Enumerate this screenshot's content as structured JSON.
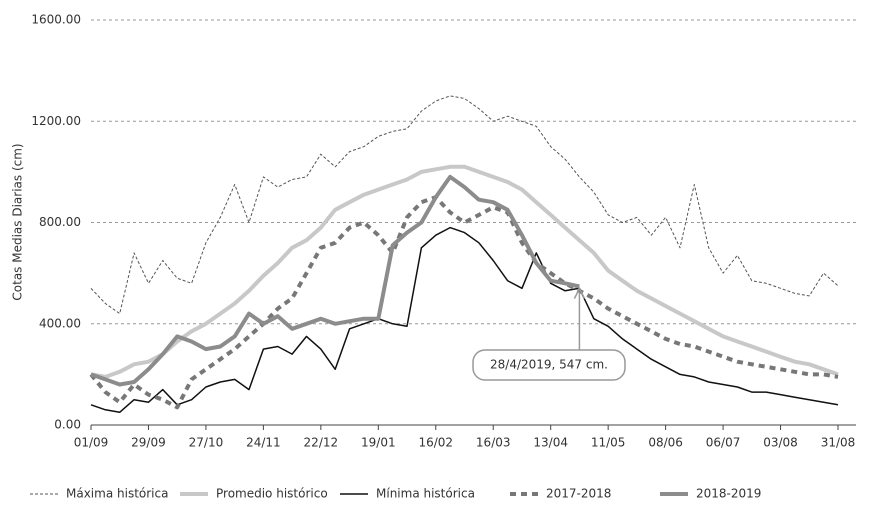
{
  "chart_data": {
    "type": "line",
    "ylabel": "Cotas Medias Diarias (cm)",
    "categories": [
      "01/09",
      null,
      null,
      null,
      "29/09",
      null,
      null,
      null,
      "27/10",
      null,
      null,
      null,
      "24/11",
      null,
      null,
      null,
      "22/12",
      null,
      null,
      null,
      "19/01",
      null,
      null,
      null,
      "16/02",
      null,
      null,
      null,
      "16/03",
      null,
      null,
      null,
      "13/04",
      null,
      null,
      null,
      "11/05",
      null,
      null,
      null,
      "08/06",
      null,
      null,
      null,
      "06/07",
      null,
      null,
      null,
      "03/08",
      null,
      null,
      null,
      "31/08"
    ],
    "ylim": [
      0,
      1600
    ],
    "yticks": [
      {
        "value": 0,
        "label": "0.00"
      },
      {
        "value": 400,
        "label": "400.00"
      },
      {
        "value": 800,
        "label": "800.00"
      },
      {
        "value": 1200,
        "label": "1200.00"
      },
      {
        "value": 1600,
        "label": "1600.00"
      }
    ],
    "grid": true,
    "legend": "bottom",
    "series": [
      {
        "name": "Máxima histórica",
        "color": "#555555",
        "dash": "3,2",
        "width": 1,
        "values": [
          540,
          480,
          440,
          680,
          560,
          650,
          580,
          560,
          720,
          820,
          950,
          800,
          980,
          940,
          970,
          980,
          1070,
          1020,
          1080,
          1100,
          1140,
          1160,
          1170,
          1240,
          1280,
          1300,
          1290,
          1250,
          1200,
          1220,
          1200,
          1180,
          1100,
          1050,
          980,
          920,
          830,
          800,
          820,
          750,
          820,
          700,
          950,
          700,
          600,
          670,
          570,
          560,
          540,
          520,
          510,
          600,
          550
        ]
      },
      {
        "name": "Promedio histórico",
        "color": "#c8c8c8",
        "dash": "none",
        "width": 4,
        "values": [
          200,
          190,
          210,
          240,
          250,
          280,
          330,
          370,
          400,
          440,
          480,
          530,
          590,
          640,
          700,
          730,
          780,
          850,
          880,
          910,
          930,
          950,
          970,
          1000,
          1010,
          1020,
          1020,
          1000,
          980,
          960,
          930,
          880,
          830,
          780,
          730,
          680,
          610,
          570,
          530,
          500,
          470,
          440,
          410,
          380,
          350,
          330,
          310,
          290,
          270,
          250,
          240,
          220,
          200
        ]
      },
      {
        "name": "Mínima histórica",
        "color": "#111111",
        "dash": "none",
        "width": 1.5,
        "values": [
          80,
          60,
          50,
          100,
          90,
          140,
          80,
          100,
          150,
          170,
          180,
          140,
          300,
          310,
          280,
          350,
          300,
          220,
          380,
          400,
          420,
          400,
          390,
          700,
          750,
          780,
          760,
          720,
          650,
          570,
          540,
          680,
          560,
          530,
          540,
          420,
          390,
          340,
          300,
          260,
          230,
          200,
          190,
          170,
          160,
          150,
          130,
          130,
          120,
          110,
          100,
          90,
          80
        ]
      },
      {
        "name": "2017-2018",
        "color": "#777777",
        "dash": "6,5",
        "width": 4,
        "values": [
          200,
          130,
          90,
          160,
          120,
          100,
          70,
          180,
          220,
          260,
          300,
          350,
          400,
          460,
          500,
          600,
          700,
          720,
          780,
          800,
          750,
          680,
          820,
          880,
          900,
          840,
          800,
          830,
          860,
          840,
          720,
          640,
          600,
          560,
          530,
          500,
          460,
          430,
          400,
          370,
          340,
          320,
          310,
          290,
          270,
          250,
          240,
          230,
          220,
          210,
          200,
          200,
          190
        ]
      },
      {
        "name": "2018-2019",
        "color": "#8c8c8c",
        "dash": "none",
        "width": 4,
        "values": [
          200,
          180,
          160,
          170,
          220,
          280,
          350,
          330,
          300,
          310,
          350,
          440,
          400,
          430,
          380,
          400,
          420,
          400,
          410,
          420,
          420,
          710,
          760,
          800,
          900,
          980,
          940,
          890,
          880,
          850,
          750,
          640,
          570,
          560,
          547,
          null,
          null,
          null,
          null,
          null,
          null,
          null,
          null,
          null,
          null,
          null,
          null,
          null,
          null,
          null,
          null,
          null,
          null
        ]
      }
    ],
    "annotation": {
      "text": "28/4/2019, 547 cm.",
      "series": 4,
      "index": 34
    }
  }
}
